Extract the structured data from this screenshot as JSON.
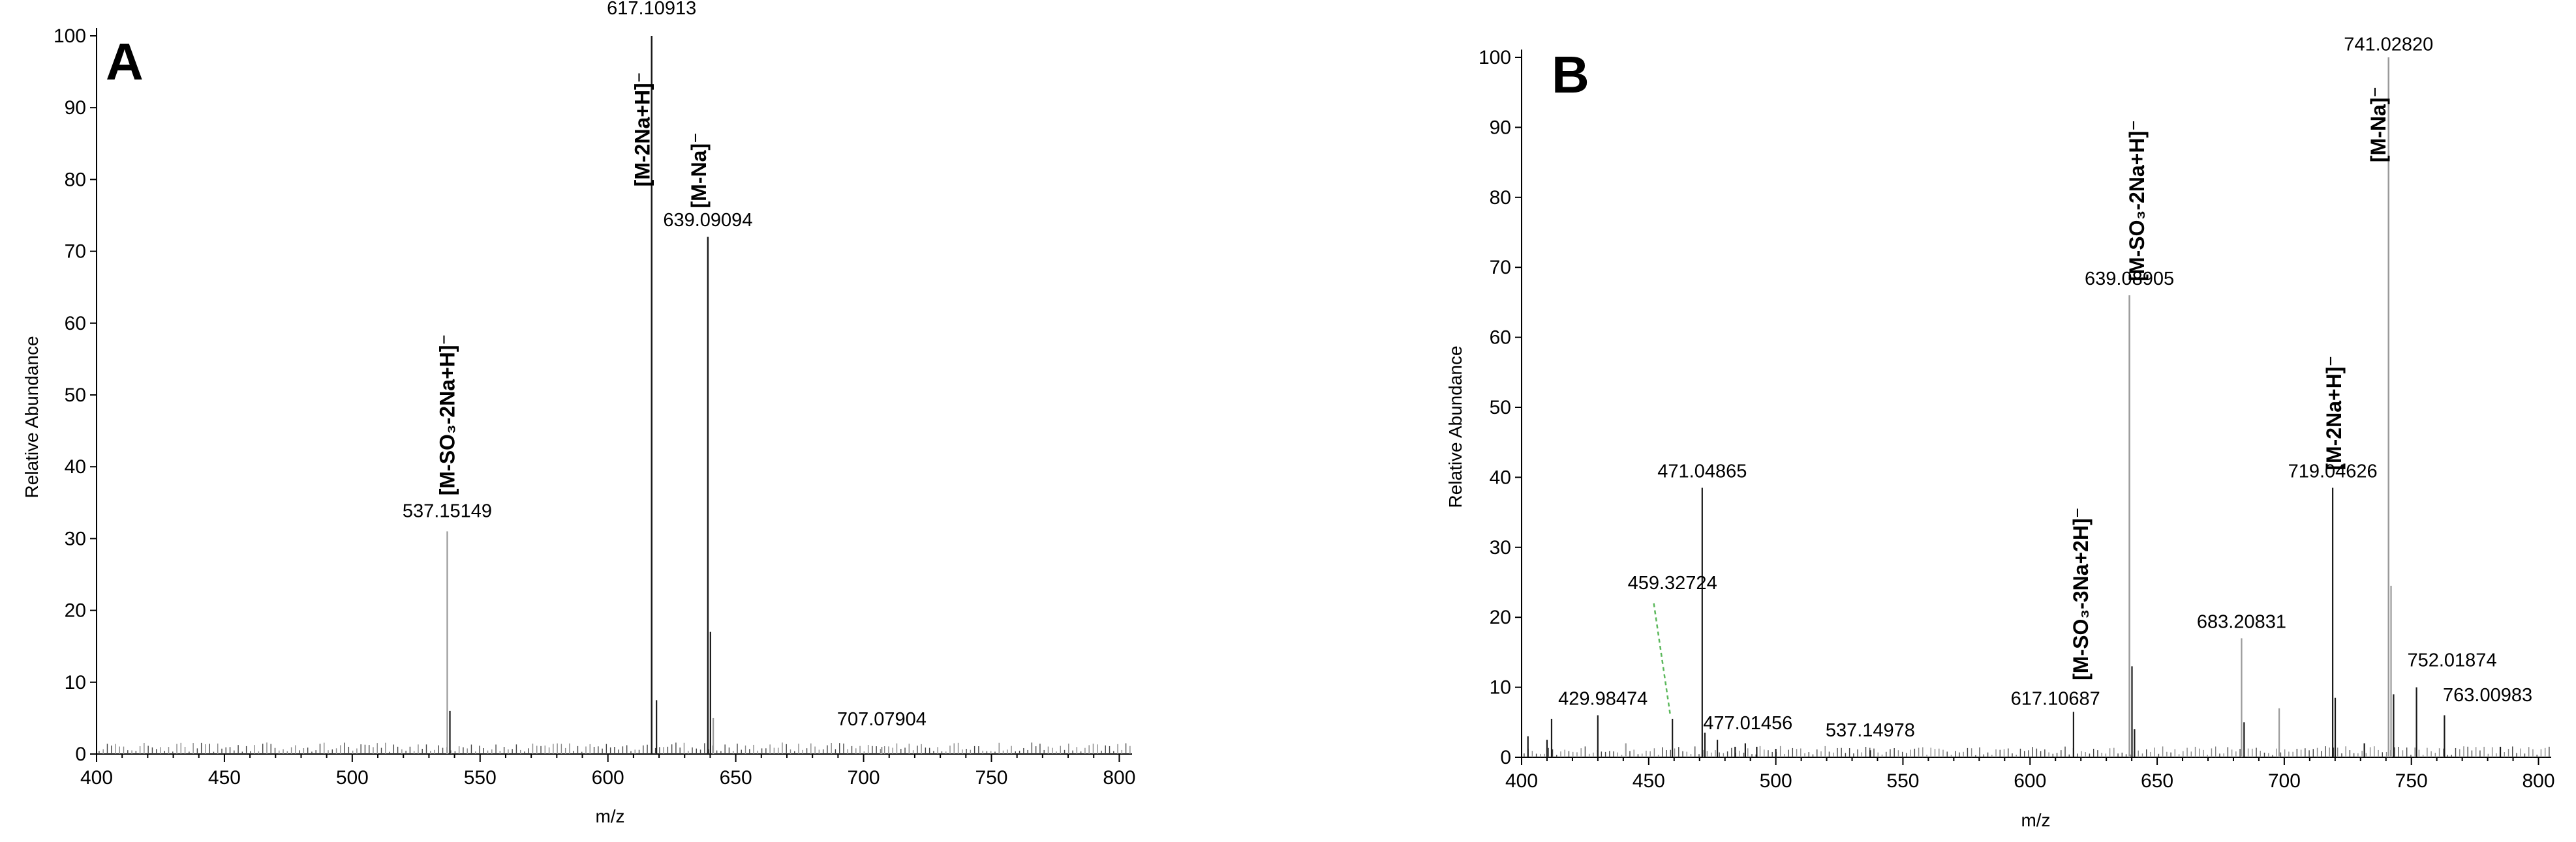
{
  "chart_data": [
    {
      "type": "bar",
      "panel": "A",
      "xlabel": "m/z",
      "ylabel": "Relative Abundance",
      "xlim": [
        400,
        805
      ],
      "ylim": [
        0,
        100
      ],
      "xticks": [
        400,
        450,
        500,
        550,
        600,
        650,
        700,
        750,
        800
      ],
      "yticks": [
        0,
        10,
        20,
        30,
        40,
        50,
        60,
        70,
        80,
        90,
        100
      ],
      "peaks": [
        {
          "mz": 537.15149,
          "intensity": 31,
          "shade": "light"
        },
        {
          "mz": 538.2,
          "intensity": 6,
          "shade": "dark"
        },
        {
          "mz": 617.10913,
          "intensity": 100,
          "shade": "dark"
        },
        {
          "mz": 619.0,
          "intensity": 7.5,
          "shade": "dark"
        },
        {
          "mz": 639.09094,
          "intensity": 72,
          "shade": "dark"
        },
        {
          "mz": 640.1,
          "intensity": 17,
          "shade": "dark"
        },
        {
          "mz": 641.2,
          "intensity": 5,
          "shade": "light"
        },
        {
          "mz": 707.07904,
          "intensity": 1,
          "shade": "light"
        }
      ],
      "peak_labels": [
        {
          "text": "537.15149",
          "mz": 537.15,
          "y": 33
        },
        {
          "text": "617.10913",
          "mz": 617.1,
          "y": 103
        },
        {
          "text": "639.09094",
          "mz": 639.1,
          "y": 73.5
        },
        {
          "text": "707.07904",
          "mz": 707.1,
          "y": 4
        }
      ],
      "ion_labels": [
        {
          "text": "[M-SO₃-2Na+H]⁻",
          "mz": 537.15,
          "y": 36
        },
        {
          "text": "[M-2Na+H]⁻",
          "mz": 613.5,
          "y": 79
        },
        {
          "text": "[M-Na]⁻",
          "mz": 635.5,
          "y": 76
        }
      ]
    },
    {
      "type": "bar",
      "panel": "B",
      "xlabel": "m/z",
      "ylabel": "Relative Abundance",
      "xlim": [
        400,
        805
      ],
      "ylim": [
        0,
        100
      ],
      "xticks": [
        400,
        450,
        500,
        550,
        600,
        650,
        700,
        750,
        800
      ],
      "yticks": [
        0,
        10,
        20,
        30,
        40,
        50,
        60,
        70,
        80,
        90,
        100
      ],
      "peaks": [
        {
          "mz": 402.5,
          "intensity": 3,
          "shade": "dark"
        },
        {
          "mz": 410.0,
          "intensity": 2.5,
          "shade": "dark"
        },
        {
          "mz": 411.8,
          "intensity": 5.5,
          "shade": "dark"
        },
        {
          "mz": 429.98474,
          "intensity": 6,
          "shade": "dark"
        },
        {
          "mz": 441.0,
          "intensity": 2,
          "shade": "light"
        },
        {
          "mz": 459.32724,
          "intensity": 5.5,
          "shade": "dark"
        },
        {
          "mz": 471.04865,
          "intensity": 38.5,
          "shade": "dark"
        },
        {
          "mz": 472.1,
          "intensity": 3.5,
          "shade": "dark"
        },
        {
          "mz": 477.01456,
          "intensity": 2.5,
          "shade": "dark"
        },
        {
          "mz": 484.0,
          "intensity": 1.5,
          "shade": "dark"
        },
        {
          "mz": 488.0,
          "intensity": 2,
          "shade": "dark"
        },
        {
          "mz": 492.5,
          "intensity": 1.5,
          "shade": "dark"
        },
        {
          "mz": 500.0,
          "intensity": 1.2,
          "shade": "dark"
        },
        {
          "mz": 537.14978,
          "intensity": 1,
          "shade": "dark"
        },
        {
          "mz": 617.10687,
          "intensity": 6.5,
          "shade": "dark"
        },
        {
          "mz": 639.08905,
          "intensity": 66,
          "shade": "light"
        },
        {
          "mz": 640.1,
          "intensity": 13,
          "shade": "dark"
        },
        {
          "mz": 641.1,
          "intensity": 4,
          "shade": "dark"
        },
        {
          "mz": 683.20831,
          "intensity": 17,
          "shade": "light"
        },
        {
          "mz": 684.2,
          "intensity": 5,
          "shade": "dark"
        },
        {
          "mz": 698.0,
          "intensity": 7,
          "shade": "light"
        },
        {
          "mz": 719.04626,
          "intensity": 38.5,
          "shade": "dark"
        },
        {
          "mz": 720.05,
          "intensity": 8.5,
          "shade": "dark"
        },
        {
          "mz": 731.5,
          "intensity": 2,
          "shade": "dark"
        },
        {
          "mz": 741.0282,
          "intensity": 100,
          "shade": "light"
        },
        {
          "mz": 742.0,
          "intensity": 24.5,
          "shade": "light"
        },
        {
          "mz": 743.0,
          "intensity": 9,
          "shade": "dark"
        },
        {
          "mz": 752.01874,
          "intensity": 10,
          "shade": "dark"
        },
        {
          "mz": 763.00983,
          "intensity": 6,
          "shade": "dark"
        },
        {
          "mz": 785.0,
          "intensity": 1.5,
          "shade": "dark"
        }
      ],
      "peak_labels": [
        {
          "text": "429.98474",
          "mz": 432,
          "y": 7.5
        },
        {
          "text": "459.32724",
          "mz": 459.33,
          "y": 24
        },
        {
          "text": "471.04865",
          "mz": 471.05,
          "y": 40
        },
        {
          "text": "477.01456",
          "mz": 489,
          "y": 4
        },
        {
          "text": "537.14978",
          "mz": 537.15,
          "y": 3
        },
        {
          "text": "617.10687",
          "mz": 610,
          "y": 7.5
        },
        {
          "text": "639.08905",
          "mz": 639.09,
          "y": 67.5
        },
        {
          "text": "683.20831",
          "mz": 683.21,
          "y": 18.5
        },
        {
          "text": "719.04626",
          "mz": 719.05,
          "y": 40
        },
        {
          "text": "741.02820",
          "mz": 741.03,
          "y": 101
        },
        {
          "text": "752.01874",
          "mz": 766,
          "y": 13
        },
        {
          "text": "763.00983",
          "mz": 780,
          "y": 8
        }
      ],
      "ion_labels": [
        {
          "text": "[M-SO₃-3Na+2H]⁻",
          "mz": 620,
          "y": 11
        },
        {
          "text": "[M-SO₃-2Na+H]⁻",
          "mz": 642,
          "y": 68
        },
        {
          "text": "[M-2Na+H]⁻",
          "mz": 719.5,
          "y": 41
        },
        {
          "text": "[M-Na]⁻",
          "mz": 737,
          "y": 85
        }
      ],
      "annotations": [
        {
          "type": "dashed-leader",
          "color": "#5bb85b",
          "from": {
            "mz": 452,
            "y": 22
          },
          "to": {
            "mz": 458.5,
            "y": 6
          }
        }
      ]
    }
  ]
}
